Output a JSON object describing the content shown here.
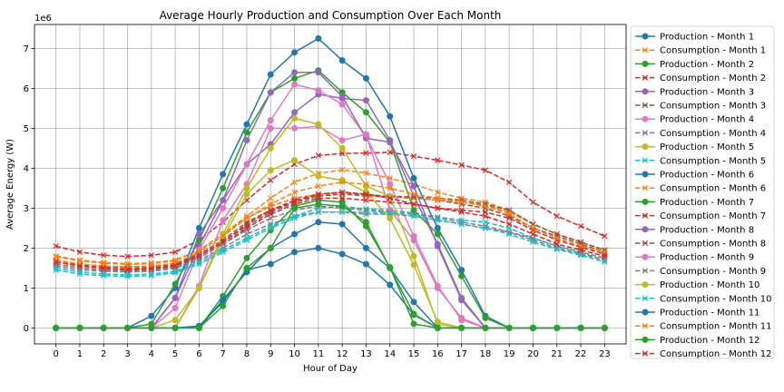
{
  "chart_data": {
    "type": "line",
    "title": "Average Hourly Production and Consumption Over Each Month",
    "xlabel": "Hour of Day",
    "ylabel": "Average Energy (W)",
    "y_multiplier_label": "1e6",
    "y_scale": 1000000,
    "x": [
      0,
      1,
      2,
      3,
      4,
      5,
      6,
      7,
      8,
      9,
      10,
      11,
      12,
      13,
      14,
      15,
      16,
      17,
      18,
      19,
      20,
      21,
      22,
      23
    ],
    "xlim": [
      -0.9,
      23.9
    ],
    "ylim": [
      -400000,
      7600000
    ],
    "yticks": [
      0,
      1000000,
      2000000,
      3000000,
      4000000,
      5000000,
      6000000,
      7000000
    ],
    "ytick_labels": [
      "0",
      "1",
      "2",
      "3",
      "4",
      "5",
      "6",
      "7"
    ],
    "xtick_labels": [
      "0",
      "1",
      "2",
      "3",
      "4",
      "5",
      "6",
      "7",
      "8",
      "9",
      "10",
      "11",
      "12",
      "13",
      "14",
      "15",
      "16",
      "17",
      "18",
      "19",
      "20",
      "21",
      "22",
      "23"
    ],
    "grid": true,
    "legend_position": "outside-right",
    "colors": [
      "#1f77b4",
      "#ff7f0e",
      "#2ca02c",
      "#d62728",
      "#9467bd",
      "#8c564b",
      "#e377c2",
      "#7f7f7f",
      "#bcbd22",
      "#17becf"
    ],
    "series": [
      {
        "name": "Production - Month 1",
        "kind": "production",
        "color": "#1f77b4",
        "values": [
          0,
          0,
          0,
          0,
          0,
          0,
          50000,
          650000,
          1450000,
          1600000,
          1900000,
          2000000,
          1850000,
          1600000,
          1080000,
          330000,
          0,
          0,
          0,
          0,
          0,
          0,
          0,
          0
        ]
      },
      {
        "name": "Consumption - Month 1",
        "kind": "consumption",
        "color": "#ff7f0e",
        "values": [
          1780000,
          1680000,
          1620000,
          1590000,
          1610000,
          1680000,
          1950000,
          2350000,
          2800000,
          3250000,
          3650000,
          3870000,
          3960000,
          3880000,
          3750000,
          3600000,
          3400000,
          3250000,
          3150000,
          2950000,
          2600000,
          2350000,
          2150000,
          1950000
        ]
      },
      {
        "name": "Production - Month 2",
        "kind": "production",
        "color": "#2ca02c",
        "values": [
          0,
          0,
          0,
          0,
          0,
          0,
          0,
          800000,
          1750000,
          2450000,
          3050000,
          3200000,
          3150000,
          2550000,
          1520000,
          100000,
          0,
          0,
          0,
          0,
          0,
          0,
          0,
          0
        ]
      },
      {
        "name": "Consumption - Month 2",
        "kind": "consumption",
        "color": "#d62728",
        "values": [
          2050000,
          1900000,
          1820000,
          1790000,
          1820000,
          1900000,
          2200000,
          2650000,
          3200000,
          3700000,
          4100000,
          4320000,
          4370000,
          4380000,
          4400000,
          4300000,
          4200000,
          4080000,
          3950000,
          3650000,
          3150000,
          2800000,
          2550000,
          2300000
        ]
      },
      {
        "name": "Production - Month 3",
        "kind": "production",
        "color": "#9467bd",
        "values": [
          0,
          0,
          0,
          0,
          0,
          750000,
          2050000,
          3200000,
          4100000,
          4600000,
          5400000,
          5850000,
          5750000,
          5700000,
          4700000,
          3300000,
          2100000,
          750000,
          0,
          0,
          0,
          0,
          0,
          0
        ]
      },
      {
        "name": "Consumption - Month 3",
        "kind": "consumption",
        "color": "#8c564b",
        "values": [
          1650000,
          1570000,
          1530000,
          1510000,
          1520000,
          1590000,
          1810000,
          2150000,
          2550000,
          2900000,
          3150000,
          3350000,
          3400000,
          3350000,
          3280000,
          3250000,
          3200000,
          3100000,
          3000000,
          2800000,
          2500000,
          2300000,
          2100000,
          1900000
        ]
      },
      {
        "name": "Production - Month 4",
        "kind": "production",
        "color": "#e377c2",
        "values": [
          0,
          0,
          0,
          0,
          0,
          500000,
          1950000,
          3000000,
          4100000,
          5200000,
          6100000,
          5950000,
          5600000,
          4800000,
          3600000,
          2300000,
          1050000,
          200000,
          0,
          0,
          0,
          0,
          0,
          0
        ]
      },
      {
        "name": "Consumption - Month 4",
        "kind": "consumption",
        "color": "#7f7f7f",
        "values": [
          1550000,
          1450000,
          1420000,
          1400000,
          1420000,
          1490000,
          1700000,
          2000000,
          2350000,
          2600000,
          2800000,
          2900000,
          2900000,
          2850000,
          2850000,
          2800000,
          2700000,
          2600000,
          2500000,
          2400000,
          2250000,
          2050000,
          1900000,
          1750000
        ]
      },
      {
        "name": "Production - Month 5",
        "kind": "production",
        "color": "#bcbd22",
        "values": [
          0,
          0,
          0,
          0,
          0,
          200000,
          1000000,
          2250000,
          3350000,
          3950000,
          4200000,
          3800000,
          3700000,
          3400000,
          2750000,
          1580000,
          150000,
          0,
          0,
          0,
          0,
          0,
          0,
          0
        ]
      },
      {
        "name": "Consumption - Month 5",
        "kind": "consumption",
        "color": "#17becf",
        "values": [
          1500000,
          1400000,
          1350000,
          1330000,
          1350000,
          1420000,
          1650000,
          1950000,
          2250000,
          2550000,
          2800000,
          3000000,
          3050000,
          2980000,
          2950000,
          2880000,
          2780000,
          2700000,
          2650000,
          2500000,
          2250000,
          2050000,
          1880000,
          1700000
        ]
      },
      {
        "name": "Production - Month 6",
        "kind": "production",
        "color": "#1f77b4",
        "values": [
          0,
          0,
          0,
          0,
          300000,
          1000000,
          2500000,
          3850000,
          5100000,
          6350000,
          6900000,
          7250000,
          6700000,
          6250000,
          5300000,
          3750000,
          2500000,
          1450000,
          300000,
          0,
          0,
          0,
          0,
          0
        ]
      },
      {
        "name": "Consumption - Month 6",
        "kind": "consumption",
        "color": "#ff7f0e",
        "values": [
          1800000,
          1700000,
          1640000,
          1610000,
          1630000,
          1700000,
          1950000,
          2350000,
          2750000,
          3050000,
          3250000,
          3350000,
          3350000,
          3300000,
          3280000,
          3250000,
          3200000,
          3150000,
          3080000,
          2900000,
          2600000,
          2350000,
          2150000,
          1950000
        ]
      },
      {
        "name": "Production - Month 7",
        "kind": "production",
        "color": "#2ca02c",
        "values": [
          0,
          0,
          0,
          0,
          100000,
          1100000,
          2200000,
          3500000,
          4900000,
          5900000,
          6250000,
          6450000,
          5900000,
          5400000,
          4650000,
          2950000,
          2350000,
          1300000,
          250000,
          0,
          0,
          0,
          0,
          0
        ]
      },
      {
        "name": "Consumption - Month 7",
        "kind": "consumption",
        "color": "#d62728",
        "values": [
          1600000,
          1500000,
          1460000,
          1440000,
          1460000,
          1530000,
          1750000,
          2100000,
          2500000,
          2850000,
          3100000,
          3250000,
          3250000,
          3200000,
          3150000,
          3100000,
          3000000,
          2950000,
          2900000,
          2750000,
          2450000,
          2200000,
          2020000,
          1850000
        ]
      },
      {
        "name": "Production - Month 8",
        "kind": "production",
        "color": "#9467bd",
        "values": [
          0,
          0,
          0,
          0,
          0,
          750000,
          2350000,
          3200000,
          4700000,
          5900000,
          6400000,
          6400000,
          5800000,
          4750000,
          4650000,
          3550000,
          2050000,
          700000,
          0,
          0,
          0,
          0,
          0,
          0
        ]
      },
      {
        "name": "Consumption - Month 8",
        "kind": "consumption",
        "color": "#8c564b",
        "values": [
          1700000,
          1600000,
          1550000,
          1530000,
          1550000,
          1620000,
          1850000,
          2200000,
          2650000,
          2950000,
          3150000,
          3300000,
          3350000,
          3330000,
          3300000,
          3280000,
          3250000,
          3200000,
          3100000,
          2950000,
          2600000,
          2350000,
          2150000,
          1950000
        ]
      },
      {
        "name": "Production - Month 9",
        "kind": "production",
        "color": "#e377c2",
        "values": [
          0,
          0,
          0,
          0,
          0,
          0,
          1050000,
          2700000,
          3600000,
          5000000,
          5000000,
          5050000,
          4700000,
          4850000,
          2950000,
          2200000,
          1000000,
          250000,
          0,
          0,
          0,
          0,
          0,
          0
        ]
      },
      {
        "name": "Consumption - Month 9",
        "kind": "consumption",
        "color": "#7f7f7f",
        "values": [
          1600000,
          1500000,
          1450000,
          1430000,
          1450000,
          1520000,
          1750000,
          2100000,
          2450000,
          2750000,
          2950000,
          3050000,
          3000000,
          2950000,
          2900000,
          2850000,
          2750000,
          2650000,
          2550000,
          2400000,
          2200000,
          2000000,
          1850000,
          1700000
        ]
      },
      {
        "name": "Production - Month 10",
        "kind": "production",
        "color": "#bcbd22",
        "values": [
          0,
          0,
          0,
          0,
          0,
          0,
          1000000,
          2350000,
          3500000,
          4500000,
          5250000,
          5100000,
          4500000,
          3550000,
          3300000,
          1800000,
          100000,
          0,
          0,
          0,
          0,
          0,
          0,
          0
        ]
      },
      {
        "name": "Consumption - Month 10",
        "kind": "consumption",
        "color": "#17becf",
        "values": [
          1450000,
          1350000,
          1310000,
          1290000,
          1310000,
          1380000,
          1600000,
          1900000,
          2200000,
          2500000,
          2750000,
          2900000,
          2900000,
          2900000,
          2880000,
          2800000,
          2700000,
          2600000,
          2500000,
          2350000,
          2150000,
          1970000,
          1820000,
          1650000
        ]
      },
      {
        "name": "Production - Month 11",
        "kind": "production",
        "color": "#1f77b4",
        "values": [
          0,
          0,
          0,
          0,
          0,
          0,
          0,
          700000,
          1400000,
          2000000,
          2350000,
          2650000,
          2600000,
          2000000,
          1500000,
          650000,
          0,
          0,
          0,
          0,
          0,
          0,
          0,
          0
        ]
      },
      {
        "name": "Consumption - Month 11",
        "kind": "consumption",
        "color": "#ff7f0e",
        "values": [
          1700000,
          1600000,
          1550000,
          1520000,
          1540000,
          1620000,
          1900000,
          2300000,
          2750000,
          3100000,
          3400000,
          3550000,
          3650000,
          3600000,
          3500000,
          3350000,
          3250000,
          3150000,
          3050000,
          2850000,
          2500000,
          2250000,
          2050000,
          1900000
        ]
      },
      {
        "name": "Production - Month 12",
        "kind": "production",
        "color": "#2ca02c",
        "values": [
          0,
          0,
          0,
          0,
          0,
          0,
          0,
          550000,
          1500000,
          2000000,
          3000000,
          3100000,
          3050000,
          2650000,
          1500000,
          350000,
          0,
          0,
          0,
          0,
          0,
          0,
          0,
          0
        ]
      },
      {
        "name": "Consumption - Month 12",
        "kind": "consumption",
        "color": "#d62728",
        "values": [
          1650000,
          1550000,
          1500000,
          1470000,
          1490000,
          1560000,
          1800000,
          2150000,
          2600000,
          2950000,
          3200000,
          3350000,
          3400000,
          3350000,
          3250000,
          3100000,
          3000000,
          2900000,
          2800000,
          2600000,
          2350000,
          2100000,
          1950000,
          1800000
        ]
      }
    ]
  }
}
